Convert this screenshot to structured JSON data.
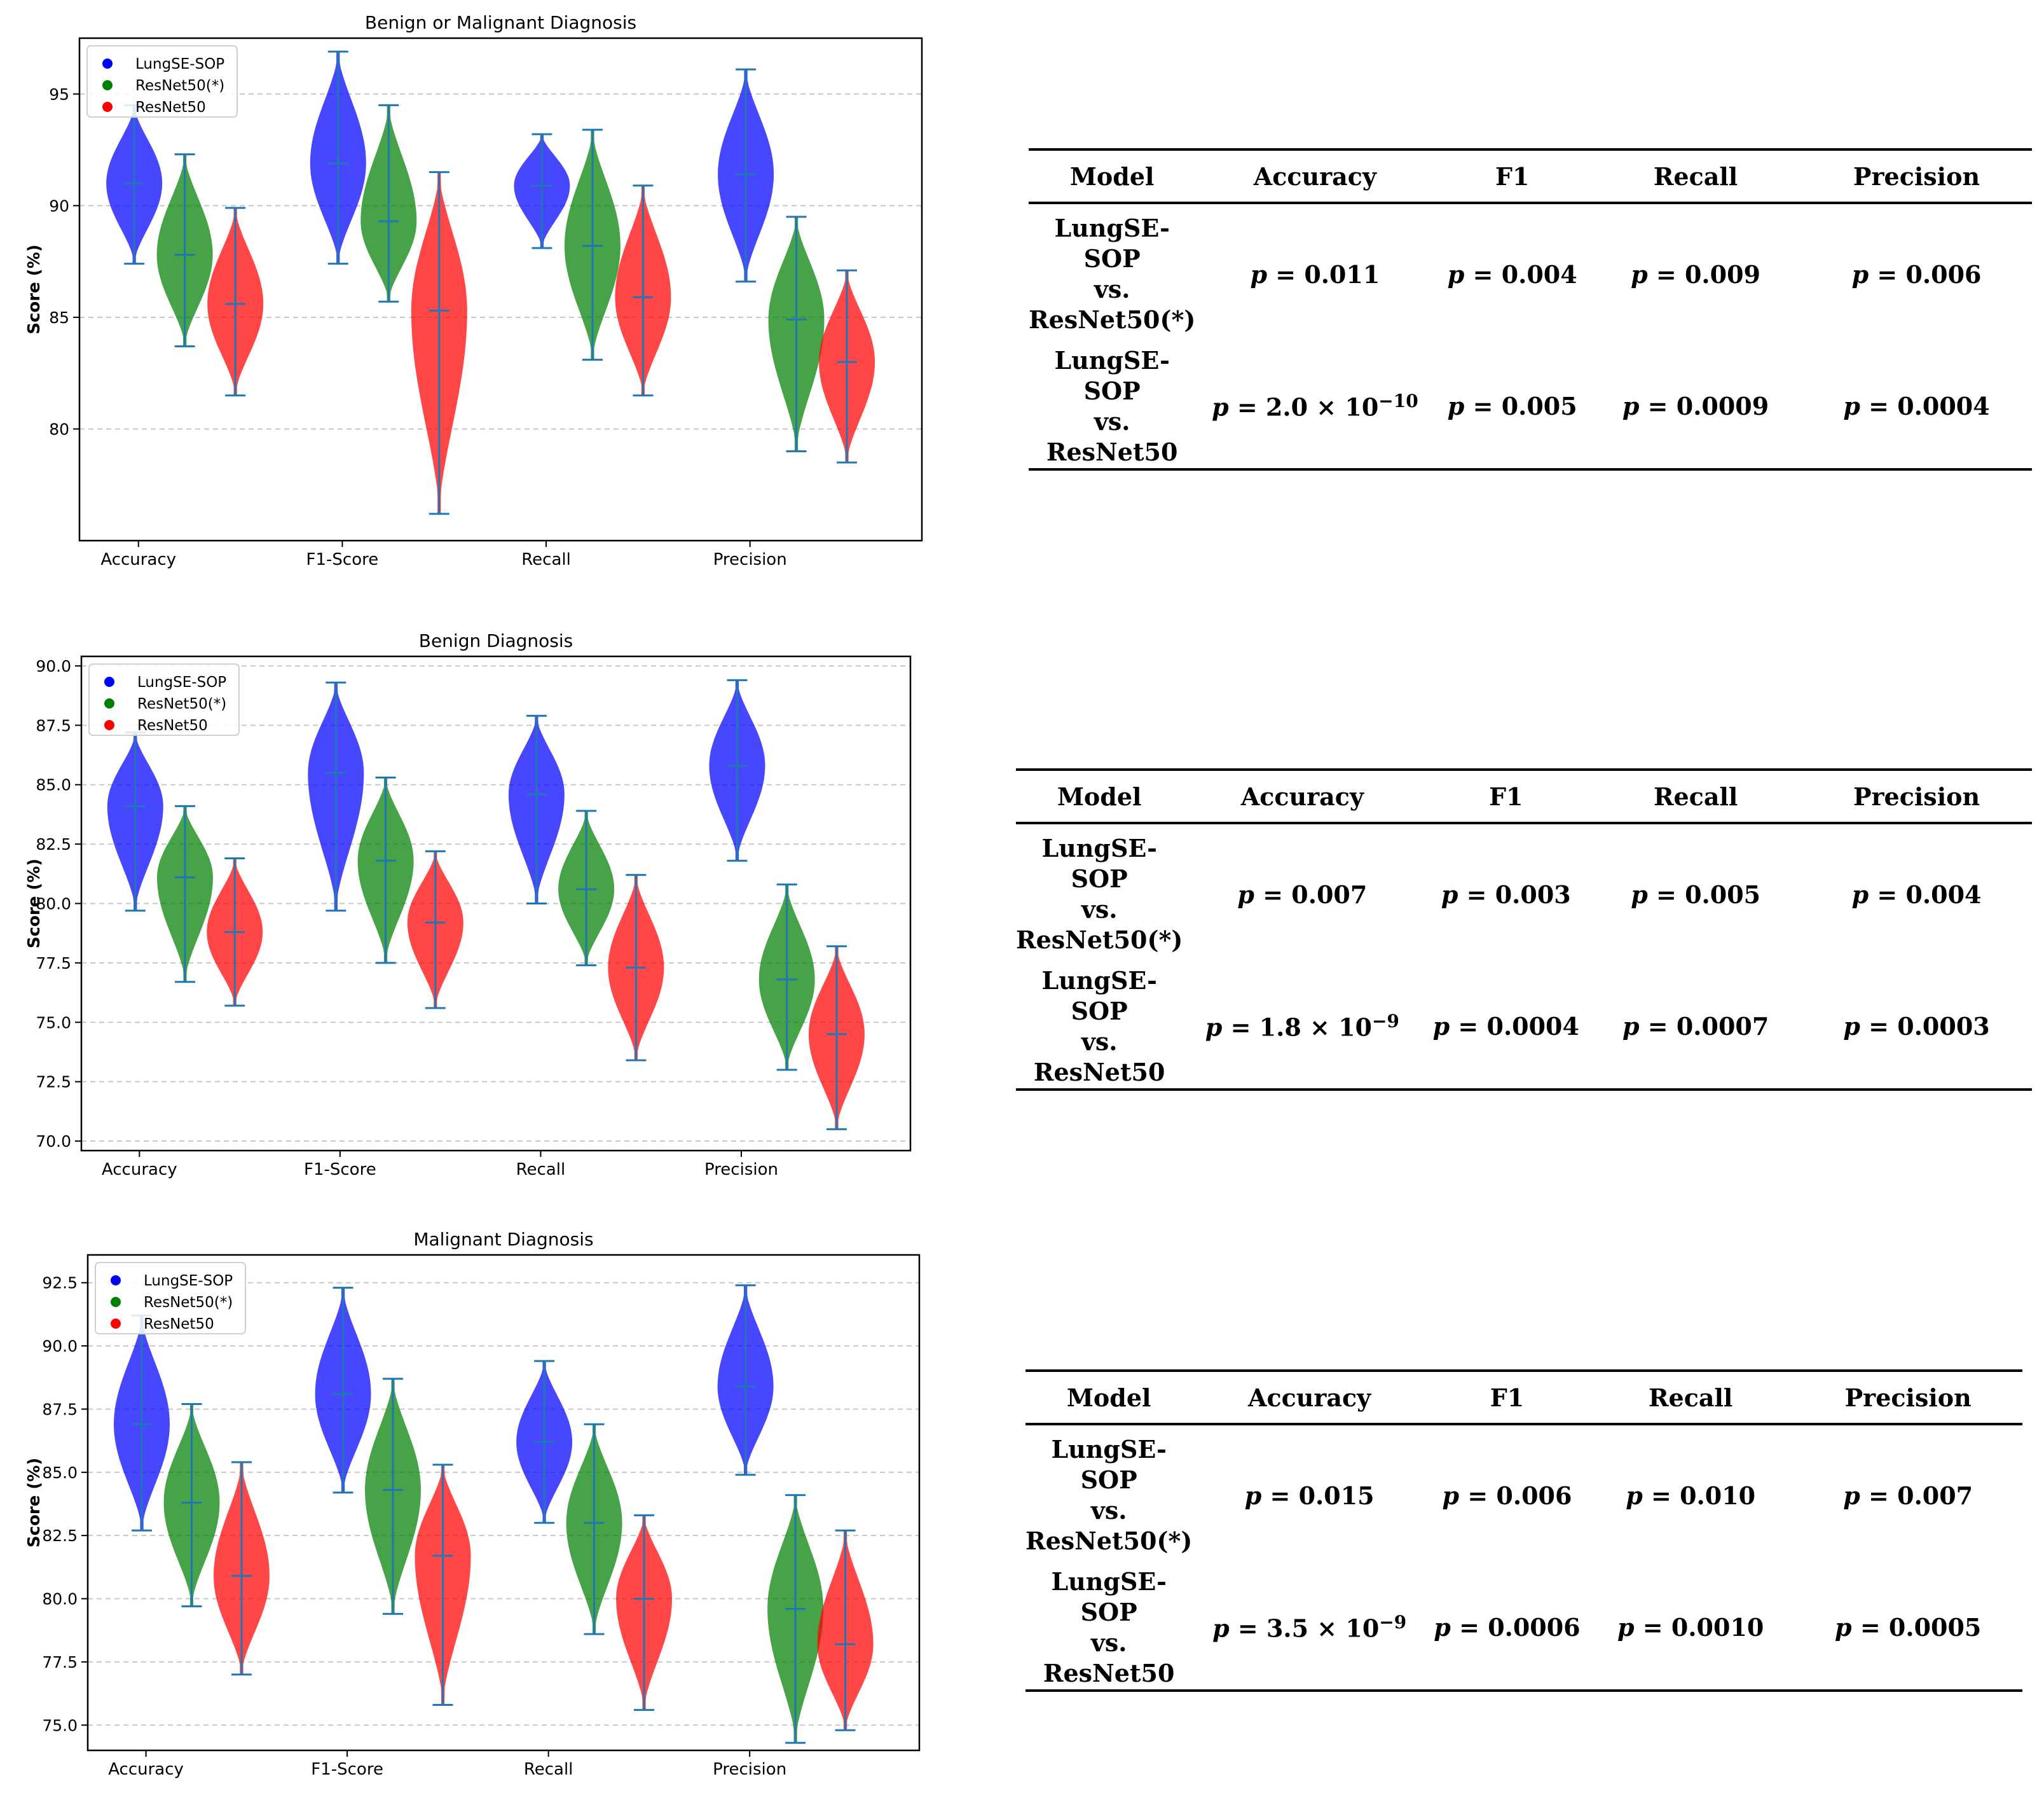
{
  "colors": {
    "lungse": "#0000ff",
    "resnet_star": "#008000",
    "resnet": "#ff0000",
    "median_line": "#1f77b4"
  },
  "legend": [
    "LungSE-SOP",
    "ResNet50(*)",
    "ResNet50"
  ],
  "chart_data": [
    {
      "type": "violin",
      "title": "Benign or Malignant Diagnosis",
      "ylabel": "Score (%)",
      "xlabel": "",
      "ylim": [
        75.0,
        97.5
      ],
      "yticks": [
        "80",
        "85",
        "90",
        "95"
      ],
      "categories": [
        "Accuracy",
        "F1-Score",
        "Recall",
        "Precision"
      ],
      "series": [
        {
          "name": "LungSE-SOP",
          "min": [
            87.4,
            87.4,
            88.1,
            86.6
          ],
          "median": [
            91.0,
            91.9,
            90.9,
            91.4
          ],
          "max": [
            94.5,
            96.9,
            93.2,
            96.1
          ]
        },
        {
          "name": "ResNet50(*)",
          "min": [
            83.7,
            85.7,
            83.1,
            79.0
          ],
          "median": [
            87.8,
            89.3,
            88.2,
            84.9
          ],
          "max": [
            92.3,
            94.5,
            93.4,
            89.5
          ]
        },
        {
          "name": "ResNet50",
          "min": [
            81.5,
            76.2,
            81.5,
            78.5
          ],
          "median": [
            85.6,
            85.3,
            85.9,
            83.0
          ],
          "max": [
            89.9,
            91.5,
            90.9,
            87.1
          ]
        }
      ]
    },
    {
      "type": "violin",
      "title": "Benign Diagnosis",
      "ylabel": "Score (%)",
      "xlabel": "",
      "ylim": [
        69.6,
        90.4
      ],
      "yticks": [
        "70.0",
        "72.5",
        "75.0",
        "77.5",
        "80.0",
        "82.5",
        "85.0",
        "87.5",
        "90.0"
      ],
      "categories": [
        "Accuracy",
        "F1-Score",
        "Recall",
        "Precision"
      ],
      "series": [
        {
          "name": "LungSE-SOP",
          "min": [
            79.7,
            79.7,
            80.0,
            81.8
          ],
          "median": [
            84.1,
            85.5,
            84.6,
            85.8
          ],
          "max": [
            87.2,
            89.3,
            87.9,
            89.4
          ]
        },
        {
          "name": "ResNet50(*)",
          "min": [
            76.7,
            77.5,
            77.4,
            73.0
          ],
          "median": [
            81.1,
            81.8,
            80.6,
            76.8
          ],
          "max": [
            84.1,
            85.3,
            83.9,
            80.8
          ]
        },
        {
          "name": "ResNet50",
          "min": [
            75.7,
            75.6,
            73.4,
            70.5
          ],
          "median": [
            78.8,
            79.2,
            77.3,
            74.5
          ],
          "max": [
            81.9,
            82.2,
            81.2,
            78.2
          ]
        }
      ]
    },
    {
      "type": "violin",
      "title": "Malignant Diagnosis",
      "ylabel": "Score (%)",
      "xlabel": "",
      "ylim": [
        74.0,
        93.6
      ],
      "yticks": [
        "75.0",
        "77.5",
        "80.0",
        "82.5",
        "85.0",
        "87.5",
        "90.0",
        "92.5"
      ],
      "categories": [
        "Accuracy",
        "F1-Score",
        "Recall",
        "Precision"
      ],
      "series": [
        {
          "name": "LungSE-SOP",
          "min": [
            82.7,
            84.2,
            83.0,
            84.9
          ],
          "median": [
            86.9,
            88.1,
            86.2,
            88.4
          ],
          "max": [
            91.2,
            92.3,
            89.4,
            92.4
          ]
        },
        {
          "name": "ResNet50(*)",
          "min": [
            79.7,
            79.4,
            78.6,
            74.3
          ],
          "median": [
            83.8,
            84.3,
            83.0,
            79.6
          ],
          "max": [
            87.7,
            88.7,
            86.9,
            84.1
          ]
        },
        {
          "name": "ResNet50",
          "min": [
            77.0,
            75.8,
            75.6,
            74.8
          ],
          "median": [
            80.9,
            81.7,
            80.0,
            78.2
          ],
          "max": [
            85.4,
            85.3,
            83.3,
            82.7
          ]
        }
      ]
    }
  ],
  "tables": [
    {
      "headers": [
        "Model",
        "Accuracy",
        "F1",
        "Recall",
        "Precision"
      ],
      "rows": [
        {
          "model": [
            "LungSE-SOP",
            "vs.",
            "ResNet50(*)"
          ],
          "accuracy": "0.011",
          "f1": "0.004",
          "recall": "0.009",
          "precision": "0.006"
        },
        {
          "model": [
            "LungSE-SOP",
            "vs. ResNet50"
          ],
          "acc_mant": "2.0",
          "acc_exp": "−10",
          "f1": "0.005",
          "recall": "0.0009",
          "precision": "0.0004"
        }
      ]
    },
    {
      "headers": [
        "Model",
        "Accuracy",
        "F1",
        "Recall",
        "Precision"
      ],
      "rows": [
        {
          "model": [
            "LungSE-SOP",
            "vs.",
            "ResNet50(*)"
          ],
          "accuracy": "0.007",
          "f1": "0.003",
          "recall": "0.005",
          "precision": "0.004"
        },
        {
          "model": [
            "LungSE-SOP",
            "vs. ResNet50"
          ],
          "acc_mant": "1.8",
          "acc_exp": "−9",
          "f1": "0.0004",
          "recall": "0.0007",
          "precision": "0.0003"
        }
      ]
    },
    {
      "headers": [
        "Model",
        "Accuracy",
        "F1",
        "Recall",
        "Precision"
      ],
      "rows": [
        {
          "model": [
            "LungSE-SOP",
            "vs.",
            "ResNet50(*)"
          ],
          "accuracy": "0.015",
          "f1": "0.006",
          "recall": "0.010",
          "precision": "0.007"
        },
        {
          "model": [
            "LungSE-SOP",
            "vs. ResNet50"
          ],
          "acc_mant": "3.5",
          "acc_exp": "−9",
          "f1": "0.0006",
          "recall": "0.0010",
          "precision": "0.0005"
        }
      ]
    }
  ]
}
